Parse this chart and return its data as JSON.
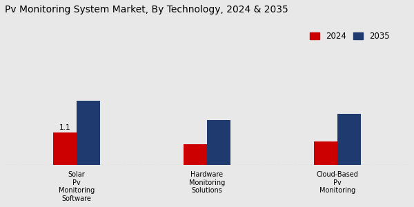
{
  "title": "Pv Monitoring System Market, By Technology, 2024 & 2035",
  "categories": [
    "Solar\nPv\nMonitoring\nSoftware",
    "Hardware\nMonitoring\nSolutions",
    "Cloud-Based\nPv\nMonitoring"
  ],
  "values_2024": [
    1.1,
    0.7,
    0.8
  ],
  "values_2035": [
    2.2,
    1.55,
    1.75
  ],
  "bar_color_2024": "#cc0000",
  "bar_color_2035": "#1f3a6e",
  "background_color": "#e8e8e8",
  "bar_width": 0.18,
  "annotation_value": "1.1",
  "legend_labels": [
    "2024",
    "2035"
  ],
  "title_fontsize": 10,
  "ylabel_fontsize": 8,
  "tick_fontsize": 7,
  "legend_fontsize": 8.5,
  "annotation_fontsize": 7.5,
  "ylim": [
    0,
    5.0
  ]
}
